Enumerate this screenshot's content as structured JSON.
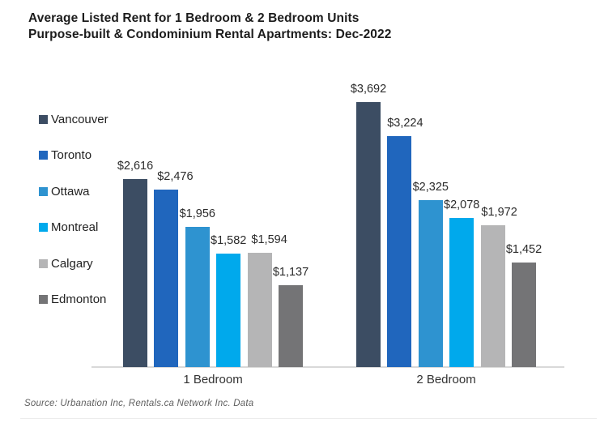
{
  "chart_data": {
    "type": "bar",
    "title_line1": "Average Listed Rent for 1 Bedroom & 2 Bedroom Units",
    "title_line2": "Purpose-built & Condominium Rental Apartments: Dec-2022",
    "categories": [
      "1 Bedroom",
      "2 Bedroom"
    ],
    "series": [
      {
        "name": "Vancouver",
        "color": "#3C4D63",
        "values": [
          2616,
          3692
        ],
        "labels": [
          "$2,616",
          "$3,692"
        ]
      },
      {
        "name": "Toronto",
        "color": "#2066BD",
        "values": [
          2476,
          3224
        ],
        "labels": [
          "$2,476",
          "$3,224"
        ]
      },
      {
        "name": "Ottawa",
        "color": "#2E93D0",
        "values": [
          1956,
          2325
        ],
        "labels": [
          "$1,956",
          "$2,325"
        ]
      },
      {
        "name": "Montreal",
        "color": "#00A9EC",
        "values": [
          1582,
          2078
        ],
        "labels": [
          "$1,582",
          "$2,078"
        ]
      },
      {
        "name": "Calgary",
        "color": "#B5B5B6",
        "values": [
          1594,
          1972
        ],
        "labels": [
          "$1,594",
          "$1,972"
        ]
      },
      {
        "name": "Edmonton",
        "color": "#747476",
        "values": [
          1137,
          1452
        ],
        "labels": [
          "$1,137",
          "$1,452"
        ]
      }
    ],
    "ylim": [
      0,
      4000
    ],
    "grid": false,
    "value_labels": true,
    "legend_position": "left",
    "source": "Source: Urbanation Inc, Rentals.ca Network Inc. Data"
  }
}
